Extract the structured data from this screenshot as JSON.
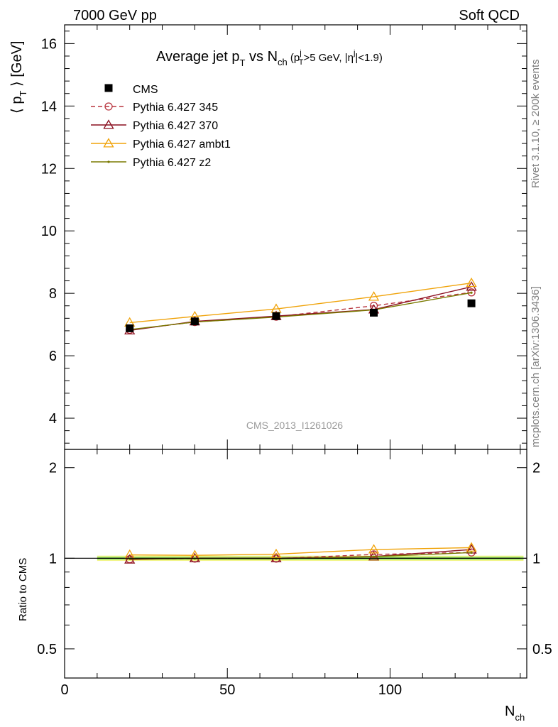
{
  "header": {
    "left": "7000 GeV pp",
    "right": "Soft QCD"
  },
  "side_labels": {
    "rivet": "Rivet 3.1.10, ≥ 200k events",
    "mcplots": "mcplots.cern.ch [arXiv:1306.3436]"
  },
  "watermark": "CMS_2013_I1261026",
  "chart_data": {
    "type": "line",
    "title": "Average jet pT vs Nch (pTj>5 GeV, |ηj|<1.9)",
    "title_parts": {
      "main_pre": "Average jet p",
      "main_sub": "T",
      "vs": " vs N",
      "vs_sub": "ch",
      "cut_open": " (p",
      "cut_sup": "j",
      "cut_sub": "T",
      "cut_mid": ">5 GeV, |η",
      "cut_sup2": "j",
      "cut_close": "|<1.9)"
    },
    "ylabel": "⟨ pT ⟩ [GeV]",
    "ylabel_parts": {
      "pre": "⟨ p",
      "sub": "T",
      "post": " ⟩ [GeV]"
    },
    "xlabel": "Nch",
    "xlabel_parts": {
      "main": "N",
      "sub": "ch"
    },
    "ratio_ylabel": "Ratio to CMS",
    "xlim": [
      0,
      142
    ],
    "ylim": [
      3.0,
      16.6
    ],
    "ratio_ylim": [
      0.4,
      2.3
    ],
    "ratio_scale": "log",
    "x_ticks": [
      0,
      50,
      100
    ],
    "y_ticks": [
      4,
      6,
      8,
      10,
      12,
      14,
      16
    ],
    "ratio_ticks": [
      0.5,
      1,
      2
    ],
    "ratio_tick_labels": [
      "0.5",
      "1",
      "2"
    ],
    "legend_position": "top-left",
    "x": [
      20,
      40,
      65,
      95,
      125
    ],
    "data": {
      "name": "CMS",
      "values": [
        6.88,
        7.1,
        7.27,
        7.38,
        7.68
      ],
      "xerr": [
        10,
        10,
        15,
        15,
        15
      ]
    },
    "series": [
      {
        "name": "Pythia 6.427 345",
        "color": "#b8353f",
        "marker": "open-circle",
        "dashed": true,
        "values": [
          6.83,
          7.08,
          7.25,
          7.6,
          8.03
        ]
      },
      {
        "name": "Pythia 6.427 370",
        "color": "#8a0f1f",
        "marker": "open-triangle",
        "dashed": false,
        "values": [
          6.81,
          7.1,
          7.27,
          7.48,
          8.21
        ]
      },
      {
        "name": "Pythia 6.427 ambt1",
        "color": "#f0a30a",
        "marker": "open-triangle",
        "dashed": false,
        "values": [
          7.06,
          7.26,
          7.5,
          7.89,
          8.33
        ]
      },
      {
        "name": "Pythia 6.427 z2",
        "color": "#7a7a00",
        "marker": "dot",
        "dashed": false,
        "values": [
          6.84,
          7.08,
          7.24,
          7.47,
          8.02
        ]
      }
    ]
  }
}
